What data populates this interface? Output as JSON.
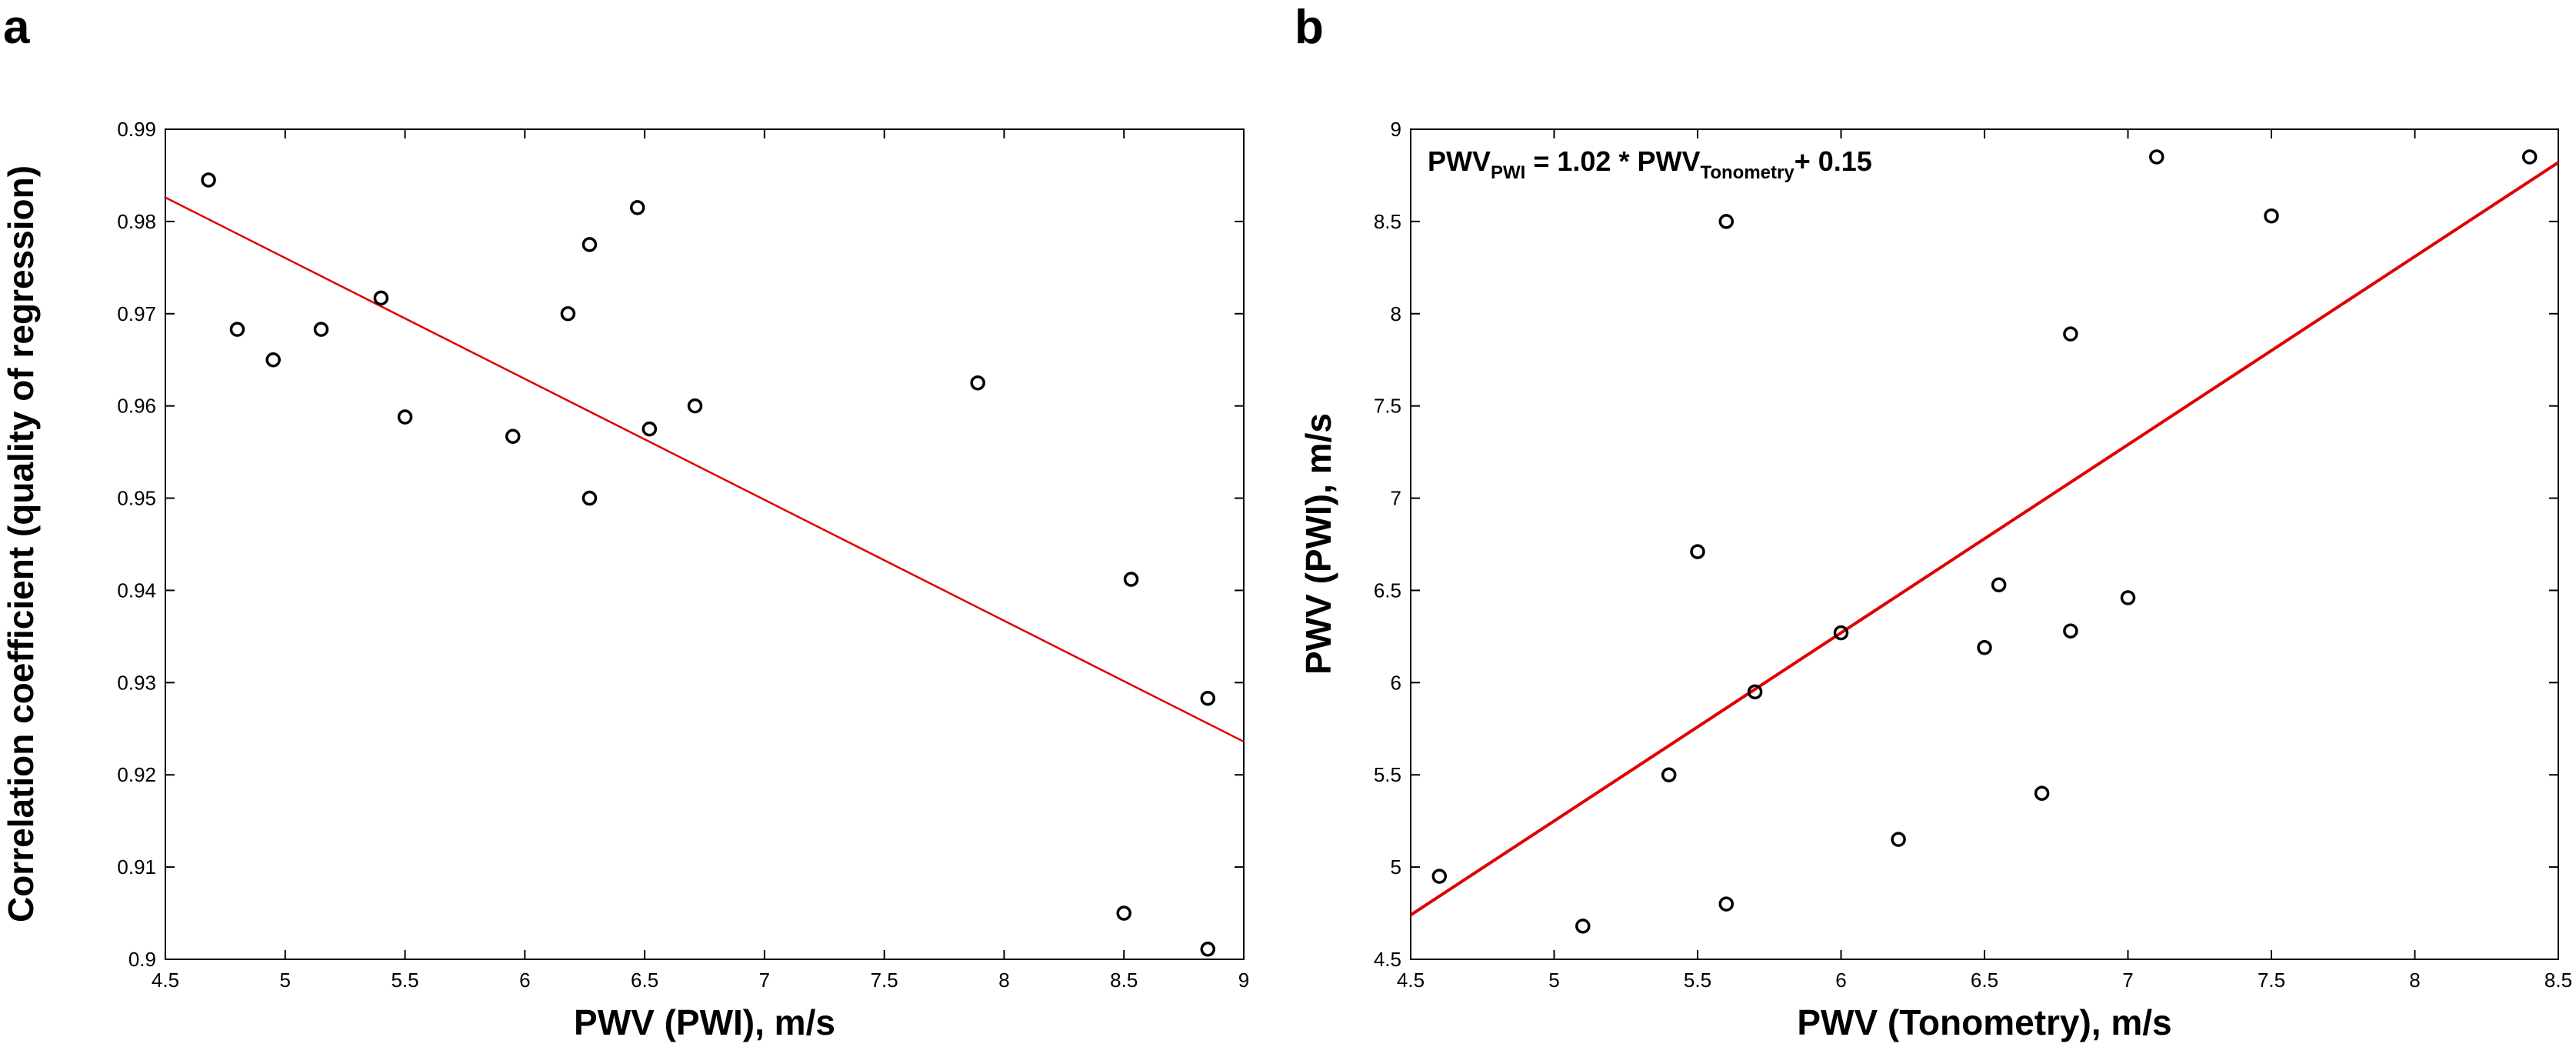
{
  "chart_data": [
    {
      "type": "scatter",
      "panel_label": "a",
      "xlabel": "PWV (PWI), m/s",
      "ylabel": "Correlation coefficient (quality of regression)",
      "xlim": [
        4.5,
        9
      ],
      "ylim": [
        0.9,
        0.99
      ],
      "xticks": [
        4.5,
        5,
        5.5,
        6,
        6.5,
        7,
        7.5,
        8,
        8.5,
        9
      ],
      "xtick_labels": [
        "4.5",
        "5",
        "5.5",
        "6",
        "6.5",
        "7",
        "7.5",
        "8",
        "8.5",
        "9"
      ],
      "yticks": [
        0.9,
        0.91,
        0.92,
        0.93,
        0.94,
        0.95,
        0.96,
        0.97,
        0.98,
        0.99
      ],
      "ytick_labels": [
        "0.9",
        "0.91",
        "0.92",
        "0.93",
        "0.94",
        "0.95",
        "0.96",
        "0.97",
        "0.98",
        "0.99"
      ],
      "grid": false,
      "points": [
        {
          "x": 4.68,
          "y": 0.9845
        },
        {
          "x": 4.8,
          "y": 0.9683
        },
        {
          "x": 4.95,
          "y": 0.965
        },
        {
          "x": 5.15,
          "y": 0.9683
        },
        {
          "x": 5.4,
          "y": 0.9717
        },
        {
          "x": 5.5,
          "y": 0.9588
        },
        {
          "x": 5.95,
          "y": 0.9567
        },
        {
          "x": 6.18,
          "y": 0.97
        },
        {
          "x": 6.27,
          "y": 0.9775
        },
        {
          "x": 6.27,
          "y": 0.95
        },
        {
          "x": 6.47,
          "y": 0.9815
        },
        {
          "x": 6.52,
          "y": 0.9575
        },
        {
          "x": 6.71,
          "y": 0.96
        },
        {
          "x": 7.89,
          "y": 0.9625
        },
        {
          "x": 8.53,
          "y": 0.9412
        },
        {
          "x": 8.5,
          "y": 0.905
        },
        {
          "x": 8.85,
          "y": 0.9283
        },
        {
          "x": 8.85,
          "y": 0.9011
        }
      ],
      "fit_line": {
        "x": [
          4.5,
          9
        ],
        "y": [
          0.9826,
          0.9236
        ],
        "color": "#e00000"
      }
    },
    {
      "type": "scatter",
      "panel_label": "b",
      "xlabel": "PWV (Tonometry), m/s",
      "ylabel": "PWV (PWI), m/s",
      "xlim": [
        4.5,
        8.5
      ],
      "ylim": [
        4.5,
        9
      ],
      "xticks": [
        4.5,
        5,
        5.5,
        6,
        6.5,
        7,
        7.5,
        8,
        8.5
      ],
      "xtick_labels": [
        "4.5",
        "5",
        "5.5",
        "6",
        "6.5",
        "7",
        "7.5",
        "8",
        "8.5"
      ],
      "yticks": [
        4.5,
        5,
        5.5,
        6,
        6.5,
        7,
        7.5,
        8,
        8.5,
        9
      ],
      "ytick_labels": [
        "4.5",
        "5",
        "5.5",
        "6",
        "6.5",
        "7",
        "7.5",
        "8",
        "8.5",
        "9"
      ],
      "grid": false,
      "annotation": {
        "main": "PWV",
        "sub1": "PWI",
        "mid": " = 1.02 * PWV",
        "sub2": "Tonometry",
        "end": "+ 0.15"
      },
      "points": [
        {
          "x": 4.6,
          "y": 4.95
        },
        {
          "x": 5.1,
          "y": 4.68
        },
        {
          "x": 5.4,
          "y": 5.5
        },
        {
          "x": 5.5,
          "y": 6.71
        },
        {
          "x": 5.6,
          "y": 8.5
        },
        {
          "x": 5.6,
          "y": 4.8
        },
        {
          "x": 5.7,
          "y": 5.95
        },
        {
          "x": 6.0,
          "y": 6.27
        },
        {
          "x": 6.2,
          "y": 5.15
        },
        {
          "x": 6.5,
          "y": 6.19
        },
        {
          "x": 6.55,
          "y": 6.53
        },
        {
          "x": 6.7,
          "y": 5.4
        },
        {
          "x": 6.8,
          "y": 7.89
        },
        {
          "x": 6.8,
          "y": 6.28
        },
        {
          "x": 7.0,
          "y": 6.46
        },
        {
          "x": 7.1,
          "y": 8.85
        },
        {
          "x": 7.5,
          "y": 8.53
        },
        {
          "x": 8.4,
          "y": 8.85
        }
      ],
      "fit_line": {
        "x": [
          4.5,
          8.5
        ],
        "y": [
          4.74,
          8.82
        ],
        "color": "#e00000"
      }
    }
  ]
}
